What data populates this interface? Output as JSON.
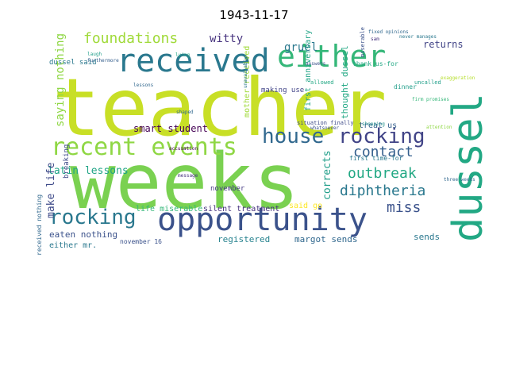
{
  "title": "1943-11-17",
  "words": [
    {
      "text": "teacher",
      "color": "#c8df26"
    },
    {
      "text": "weeks",
      "color": "#7ad151"
    },
    {
      "text": "opportunity",
      "color": "#3b528b"
    },
    {
      "text": "dussel",
      "color": "#22a884"
    },
    {
      "text": "received",
      "color": "#2a788e"
    },
    {
      "text": "either",
      "color": "#35b779"
    },
    {
      "text": "recent events",
      "color": "#8fd744"
    },
    {
      "text": "house",
      "color": "#31688e"
    },
    {
      "text": "rocking",
      "color": "#414487"
    },
    {
      "text": "rocking",
      "color": "#2a788e"
    },
    {
      "text": "foundations",
      "color": "#a0da39"
    },
    {
      "text": "outbreak",
      "color": "#22a884"
    },
    {
      "text": "diphtheria",
      "color": "#2a788e"
    },
    {
      "text": "contact",
      "color": "#355f8d"
    },
    {
      "text": "miss",
      "color": "#3b528b"
    },
    {
      "text": "witty",
      "color": "#46327e"
    },
    {
      "text": "gruel",
      "color": "#2a788e"
    },
    {
      "text": "returns",
      "color": "#414487"
    },
    {
      "text": "saying nothing",
      "color": "#8fd744"
    },
    {
      "text": "latin lessons",
      "color": "#20a486"
    },
    {
      "text": "smart student",
      "color": "#440154"
    },
    {
      "text": "make life",
      "color": "#3e4a89"
    },
    {
      "text": "corrects",
      "color": "#1f9e89"
    },
    {
      "text": "eaten nothing",
      "color": "#3b528b"
    },
    {
      "text": "either mr.",
      "color": "#2a788e"
    },
    {
      "text": "registered",
      "color": "#26828e"
    },
    {
      "text": "margot sends",
      "color": "#31688e"
    },
    {
      "text": "sends",
      "color": "#2a788e"
    },
    {
      "text": "treat us",
      "color": "#355f8d"
    },
    {
      "text": "first anniversary",
      "color": "#20a486"
    },
    {
      "text": "thought dussel",
      "color": "#22a884"
    },
    {
      "text": "life miserable",
      "color": "#35b779"
    },
    {
      "text": "silent treatment",
      "color": "#46327e"
    },
    {
      "text": "november",
      "color": "#443983"
    },
    {
      "text": "said go",
      "color": "#fde725"
    },
    {
      "text": "november 16",
      "color": "#3b528b"
    },
    {
      "text": "dussel said",
      "color": "#2a788e"
    },
    {
      "text": "mother received",
      "color": "#a0da39"
    },
    {
      "text": "making use",
      "color": "#414487"
    },
    {
      "text": "first time-for",
      "color": "#2a788e"
    },
    {
      "text": "received nothing",
      "color": "#31688e"
    },
    {
      "text": "breaking",
      "color": "#3e4a89"
    },
    {
      "text": "thank us-for",
      "color": "#22a884"
    },
    {
      "text": "dinner",
      "color": "#1f9e89"
    },
    {
      "text": "sam",
      "color": "#46327e"
    },
    {
      "text": "fixed opinions",
      "color": "#31688e"
    },
    {
      "text": "miserable",
      "color": "#3b528b"
    },
    {
      "text": "never manages",
      "color": "#2a788e"
    },
    {
      "text": "exaggeration",
      "color": "#b5de2b"
    },
    {
      "text": "uncalled",
      "color": "#1f9e89"
    },
    {
      "text": "firm promises",
      "color": "#35b779"
    },
    {
      "text": "allowed",
      "color": "#22a884"
    },
    {
      "text": "lessons",
      "color": "#31688e"
    },
    {
      "text": "situation finally",
      "color": "#3e4a89"
    },
    {
      "text": "shopping",
      "color": "#21918c"
    },
    {
      "text": "attention",
      "color": "#8fd744"
    },
    {
      "text": "accusation",
      "color": "#440154"
    },
    {
      "text": "whatsoever",
      "color": "#3b528b"
    },
    {
      "text": "three weeks",
      "color": "#31688e"
    },
    {
      "text": "message",
      "color": "#46327e"
    },
    {
      "text": "unavailably",
      "color": "#2a788e"
    },
    {
      "text": "furthermore",
      "color": "#355f8d"
    },
    {
      "text": "lying",
      "color": "#22a884"
    },
    {
      "text": "laugh",
      "color": "#1f9e89"
    },
    {
      "text": "answers",
      "color": "#3b528b"
    },
    {
      "text": "shaped",
      "color": "#31688e"
    }
  ]
}
